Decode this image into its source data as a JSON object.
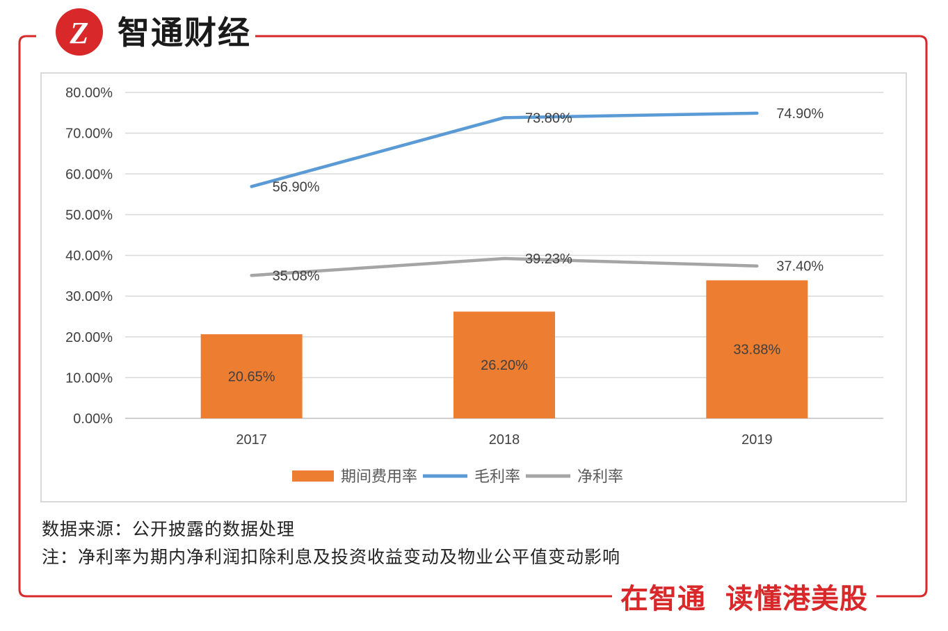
{
  "brand": {
    "logo_mark": "Z",
    "name": "智通财经",
    "slogan_part1": "在智通",
    "slogan_part2": "读懂港美股",
    "accent_color": "#d8282a"
  },
  "chart_data": {
    "type": "bar+line",
    "categories": [
      "2017",
      "2018",
      "2019"
    ],
    "y_ticks": [
      "0.00%",
      "10.00%",
      "20.00%",
      "30.00%",
      "40.00%",
      "50.00%",
      "60.00%",
      "70.00%",
      "80.00%"
    ],
    "ylim": [
      0,
      80
    ],
    "grid": true,
    "legend_position": "bottom",
    "series": [
      {
        "name": "期间费用率",
        "kind": "bar",
        "color": "#ed7d31",
        "values": [
          20.65,
          26.2,
          33.88
        ],
        "labels": [
          "20.65%",
          "26.20%",
          "33.88%"
        ]
      },
      {
        "name": "毛利率",
        "kind": "line",
        "color": "#5b9bd5",
        "values": [
          56.9,
          73.8,
          74.9
        ],
        "labels": [
          "56.90%",
          "73.80%",
          "74.90%"
        ]
      },
      {
        "name": "净利率",
        "kind": "line",
        "color": "#a5a5a5",
        "values": [
          35.08,
          39.23,
          37.4
        ],
        "labels": [
          "35.08%",
          "39.23%",
          "37.40%"
        ]
      }
    ]
  },
  "notes": {
    "source": "数据来源：公开披露的数据处理",
    "remark": "注：净利率为期内净利润扣除利息及投资收益变动及物业公平值变动影响"
  }
}
